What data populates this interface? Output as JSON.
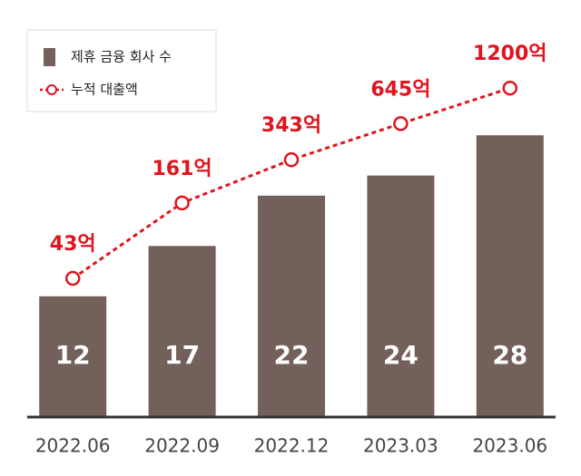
{
  "chart_data": {
    "type": "bar-line",
    "categories": [
      "2022.06",
      "2022.09",
      "2022.12",
      "2023.03",
      "2023.06"
    ],
    "series": [
      {
        "name": "제휴 금융 회사 수",
        "type": "bar",
        "color": "#74605a",
        "values": [
          12,
          17,
          22,
          24,
          28
        ]
      },
      {
        "name": "누적 대출액",
        "type": "line",
        "axis": "y2",
        "color": "#e0141e",
        "values": [
          43,
          161,
          343,
          645,
          1200
        ],
        "value_labels": [
          "43억",
          "161억",
          "343억",
          "645억",
          "1200억"
        ]
      }
    ],
    "ylim": [
      0,
      30
    ],
    "y2lim": [
      10,
      2000
    ],
    "y2log": true,
    "legend": "top-left"
  }
}
